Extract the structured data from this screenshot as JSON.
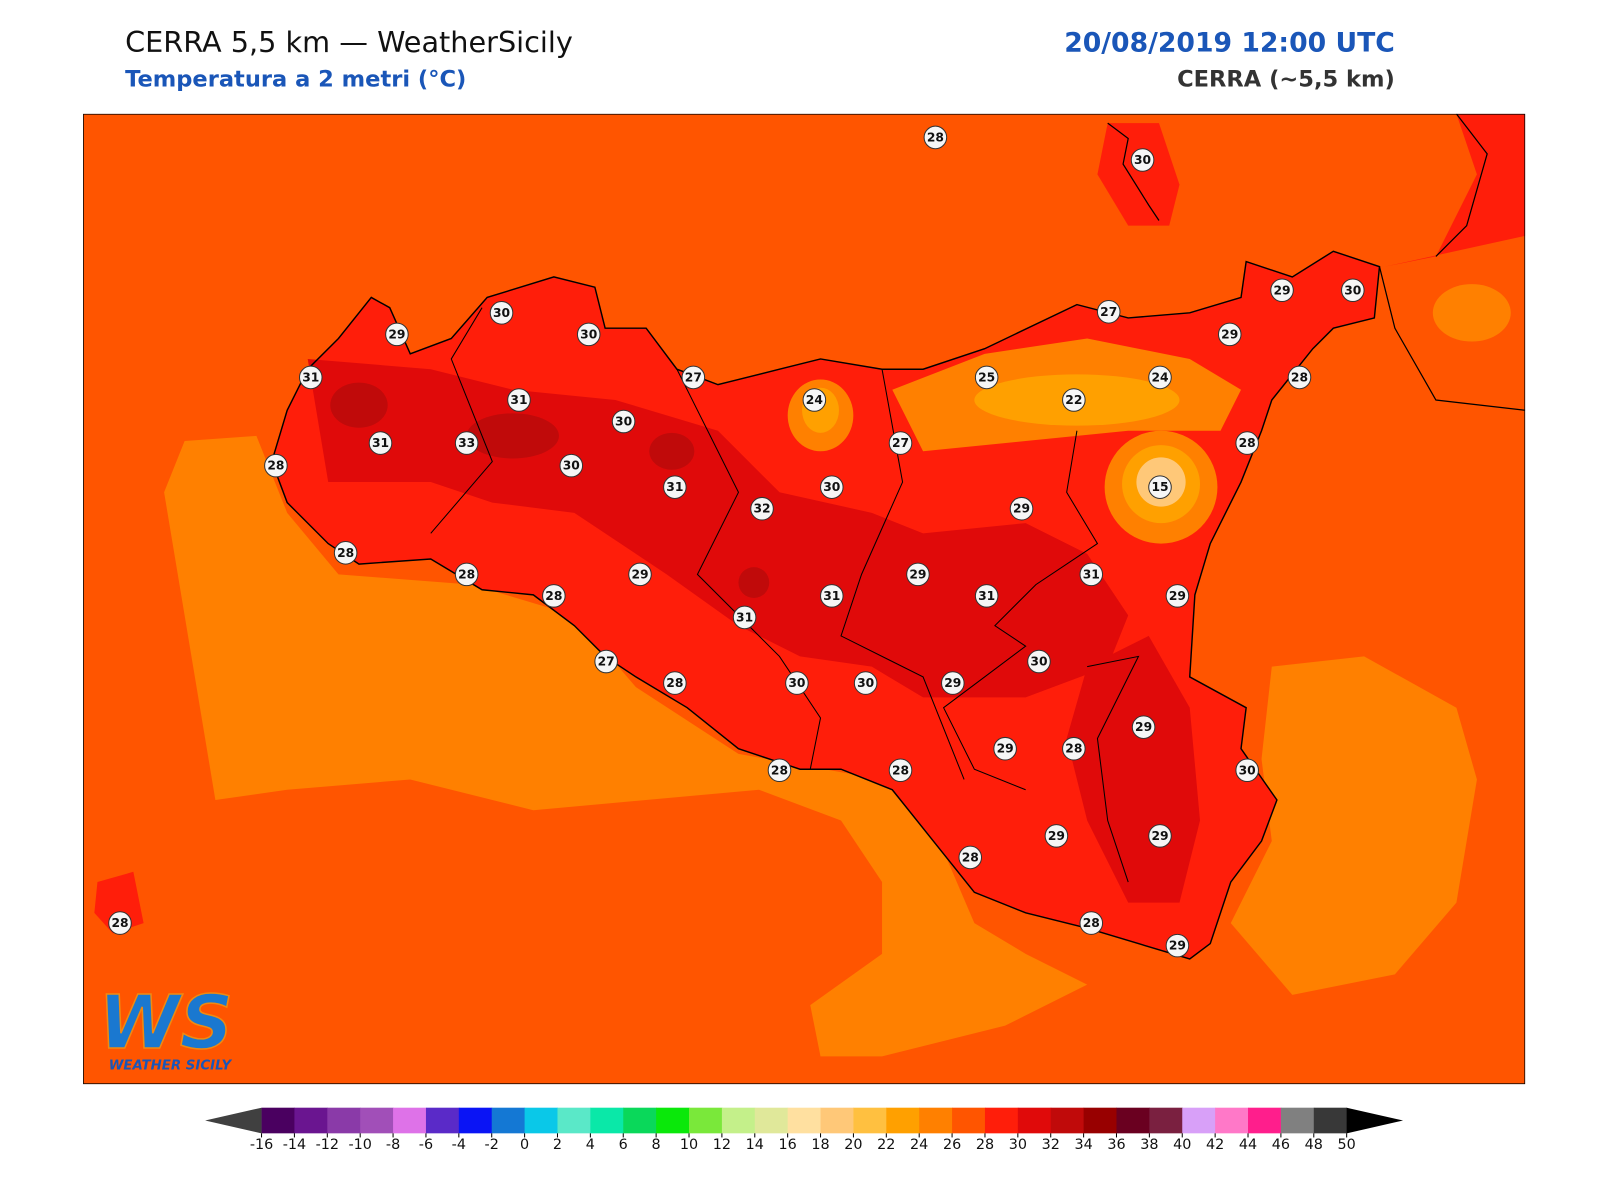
{
  "header": {
    "title": "CERRA 5,5 km — WeatherSicily",
    "subtitle": "Temperatura a 2 metri (°C)",
    "datetime": "20/08/2019 12:00 UTC",
    "model": "CERRA (~5,5 km)"
  },
  "logo": {
    "mark": "WS",
    "name": "WEATHER SICILY"
  },
  "stations": [
    28,
    30,
    30,
    29,
    30,
    27,
    29,
    30,
    29,
    31,
    27,
    25,
    24,
    28,
    31,
    24,
    22,
    30,
    31,
    33,
    27,
    28,
    28,
    30,
    31,
    30,
    15,
    32,
    29,
    28,
    28,
    29,
    29,
    31,
    28,
    31,
    31,
    29,
    31,
    30,
    27,
    28,
    30,
    30,
    29,
    29,
    29,
    28,
    28,
    28,
    30,
    28,
    29,
    29,
    28,
    28,
    29
  ],
  "colorbar": {
    "ticks": [
      -16,
      -14,
      -12,
      -10,
      -8,
      -6,
      -4,
      -2,
      0,
      2,
      4,
      6,
      8,
      10,
      12,
      14,
      16,
      18,
      20,
      22,
      24,
      26,
      28,
      30,
      32,
      34,
      36,
      38,
      40,
      42,
      44,
      46,
      48,
      50
    ],
    "colors": [
      "#4a0060",
      "#6a1590",
      "#8a3aa8",
      "#a14fb8",
      "#de72e8",
      "#5a2ac8",
      "#0a14f5",
      "#1478d4",
      "#0ac8e8",
      "#5ae8c8",
      "#0ae8a8",
      "#0ad85a",
      "#0ae80a",
      "#7ae83a",
      "#c4f08a",
      "#e0e89a",
      "#ffe0a0",
      "#ffc878",
      "#ffc040",
      "#ffa000",
      "#ff8000",
      "#ff5500",
      "#ff1e0a",
      "#e00a0a",
      "#c00a0a",
      "#980000",
      "#6a0020",
      "#7a2040",
      "#d8a0f8",
      "#ff78c8",
      "#ff1e8c",
      "#808080",
      "#383838"
    ],
    "under_color": "#404040",
    "over_color": "#000000"
  }
}
